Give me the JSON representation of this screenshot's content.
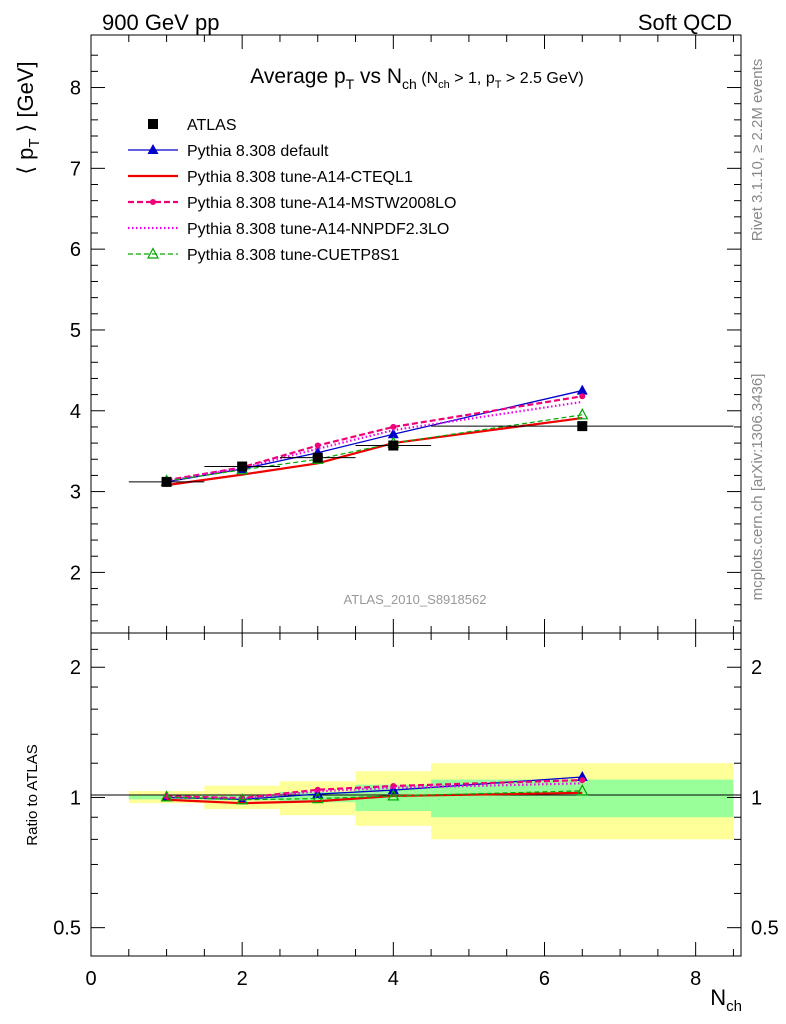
{
  "header": {
    "left": "900 GeV pp",
    "right": "Soft QCD"
  },
  "side": {
    "rivet": "Rivet 3.1.10, ≥ 2.2M events",
    "source": "mcplots.cern.ch [arXiv:1306.3436]"
  },
  "chart_data": [
    {
      "type": "line",
      "panel": "main",
      "title": {
        "prefix": "Average p",
        "sub1": "T",
        "mid": " vs N",
        "sub2": "ch",
        "cond_a": " (N",
        "cond_sub_a": "ch",
        "cond_b": " > 1, p",
        "cond_sub_b": "T",
        "cond_c": " > 2.5 GeV)"
      },
      "ylabel": {
        "open": "⟨ p",
        "sub": "T",
        "close": " ⟩  [GeV]"
      },
      "watermark": "ATLAS_2010_S8918562",
      "xlim": [
        0,
        8.6
      ],
      "ylim": [
        1.25,
        8.65
      ],
      "yticks": [
        {
          "v": 2,
          "label": "2"
        },
        {
          "v": 3,
          "label": "3"
        },
        {
          "v": 4,
          "label": "4"
        },
        {
          "v": 5,
          "label": "5"
        },
        {
          "v": 6,
          "label": "6"
        },
        {
          "v": 7,
          "label": "7"
        },
        {
          "v": 8,
          "label": "8"
        }
      ],
      "data": {
        "name": "ATLAS",
        "x": [
          1,
          2,
          3,
          4,
          6.5
        ],
        "y": [
          3.12,
          3.31,
          3.42,
          3.57,
          3.81
        ],
        "xerr": [
          0.5,
          0.5,
          0.5,
          0.5,
          2.0
        ]
      },
      "series": [
        {
          "name": "Pythia 8.308 default",
          "color": "#0000cc",
          "dash": "",
          "width": 1.3,
          "marker": "triangle-filled",
          "x": [
            1,
            2,
            3,
            4,
            6.5
          ],
          "y": [
            3.12,
            3.28,
            3.48,
            3.71,
            4.25
          ]
        },
        {
          "name": "Pythia 8.308 tune-A14-CTEQL1",
          "color": "#ee0000",
          "dash": "",
          "width": 2.2,
          "marker": "none",
          "x": [
            1,
            2,
            3,
            4,
            6.5
          ],
          "y": [
            3.08,
            3.21,
            3.35,
            3.6,
            3.91
          ]
        },
        {
          "name": "Pythia 8.308 tune-A14-MSTW2008LO",
          "color": "#ee0077",
          "dash": "6,3",
          "width": 2.2,
          "marker": "circle",
          "x": [
            1,
            2,
            3,
            4,
            6.5
          ],
          "y": [
            3.14,
            3.3,
            3.57,
            3.8,
            4.18
          ]
        },
        {
          "name": "Pythia 8.308 tune-A14-NNPDF2.3LO",
          "color": "#ee00ee",
          "dash": "1.5,2.5",
          "width": 2.2,
          "marker": "none",
          "x": [
            1,
            2,
            3,
            4,
            6.5
          ],
          "y": [
            3.13,
            3.29,
            3.53,
            3.76,
            4.11
          ]
        },
        {
          "name": "Pythia 8.308 tune-CUETP8S1",
          "color": "#00aa00",
          "dash": "5,3",
          "width": 1.2,
          "marker": "triangle-open",
          "x": [
            1,
            2,
            3,
            4,
            6.5
          ],
          "y": [
            3.13,
            3.27,
            3.4,
            3.6,
            3.95
          ]
        }
      ]
    },
    {
      "type": "line",
      "panel": "ratio",
      "ylabel": "Ratio to ATLAS",
      "xlabel": {
        "main": "N",
        "sub": "ch"
      },
      "xlim": [
        0,
        8.6
      ],
      "ylim": [
        0.43,
        2.4
      ],
      "scale": "log",
      "xticks": [
        {
          "v": 0,
          "label": "0"
        },
        {
          "v": 2,
          "label": "2"
        },
        {
          "v": 4,
          "label": "4"
        },
        {
          "v": 6,
          "label": "6"
        },
        {
          "v": 8,
          "label": "8"
        }
      ],
      "yticks": [
        {
          "v": 0.5,
          "label": "0.5"
        },
        {
          "v": 1,
          "label": "1"
        },
        {
          "v": 2,
          "label": "2"
        }
      ],
      "uncertainty_bands": [
        {
          "x0": 0.5,
          "x1": 1.5,
          "inner": [
            0.99,
            1.01
          ],
          "outer": [
            0.97,
            1.035
          ]
        },
        {
          "x0": 1.5,
          "x1": 2.5,
          "inner": [
            0.985,
            1.015
          ],
          "outer": [
            0.94,
            1.065
          ]
        },
        {
          "x0": 2.5,
          "x1": 3.5,
          "inner": [
            0.975,
            1.03
          ],
          "outer": [
            0.91,
            1.09
          ]
        },
        {
          "x0": 3.5,
          "x1": 4.5,
          "inner": [
            0.93,
            1.07
          ],
          "outer": [
            0.86,
            1.15
          ]
        },
        {
          "x0": 4.5,
          "x1": 8.5,
          "inner": [
            0.9,
            1.1
          ],
          "outer": [
            0.8,
            1.2
          ]
        }
      ],
      "series_ratios": [
        {
          "name": "Pythia 8.308 default",
          "y": [
            1.0,
            0.99,
            1.018,
            1.04,
            1.115
          ]
        },
        {
          "name": "Pythia 8.308 tune-A14-CTEQL1",
          "y": [
            0.988,
            0.97,
            0.98,
            1.008,
            1.025
          ]
        },
        {
          "name": "Pythia 8.308 tune-A14-MSTW2008LO",
          "y": [
            1.006,
            0.997,
            1.042,
            1.063,
            1.097
          ]
        },
        {
          "name": "Pythia 8.308 tune-A14-NNPDF2.3LO",
          "y": [
            1.003,
            0.994,
            1.033,
            1.053,
            1.078
          ]
        },
        {
          "name": "Pythia 8.308 tune-CUETP8S1",
          "y": [
            1.003,
            0.988,
            0.994,
            1.008,
            1.036
          ]
        }
      ]
    }
  ]
}
